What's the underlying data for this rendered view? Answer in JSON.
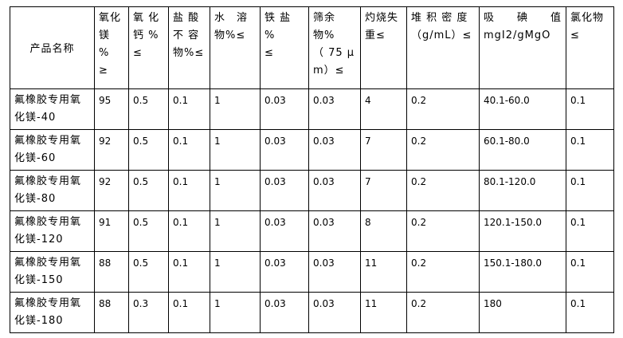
{
  "table": {
    "headers": [
      "产品名称",
      "氧化\n镁 %\n≥",
      "氧 化\n钙 %\n≤",
      "盐 酸\n不 容\n物%≤",
      "水　溶\n物%≤",
      "铁 盐 %\n≤",
      "筛余物%\n（ 75 μ\nm）≤",
      "灼烧失\n重≤",
      "堆 积 密 度\n（g/mL）≤",
      "吸　　碘　　值\nmgI2/gMgO",
      "氯化物\n≤"
    ],
    "rows": [
      [
        "氟橡胶专用氧\n化镁-40",
        "95",
        "0.5",
        "0.1",
        "1",
        "0.03",
        "0.03",
        "4",
        "0.2",
        "40.1-60.0",
        "0.1"
      ],
      [
        "氟橡胶专用氧\n化镁-60",
        "92",
        "0.5",
        "0.1",
        "1",
        "0.03",
        "0.03",
        "7",
        "0.2",
        "60.1-80.0",
        "0.1"
      ],
      [
        "氟橡胶专用氧\n化镁-80",
        "92",
        "0.5",
        "0.1",
        "1",
        "0.03",
        "0.03",
        "7",
        "0.2",
        "80.1-120.0",
        "0.1"
      ],
      [
        "氟橡胶专用氧\n化镁-120",
        "91",
        "0.5",
        "0.1",
        "1",
        "0.03",
        "0.03",
        "8",
        "0.2",
        "120.1-150.0",
        "0.1"
      ],
      [
        "氟橡胶专用氧\n化镁-150",
        "88",
        "0.5",
        "0.1",
        "1",
        "0.03",
        "0.03",
        "11",
        "0.2",
        "150.1-180.0",
        "0.1"
      ],
      [
        "氟橡胶专用氧\n化镁-180",
        "88",
        "0.3",
        "0.1",
        "1",
        "0.03",
        "0.03",
        "11",
        "0.2",
        "180",
        "0.1"
      ]
    ]
  }
}
